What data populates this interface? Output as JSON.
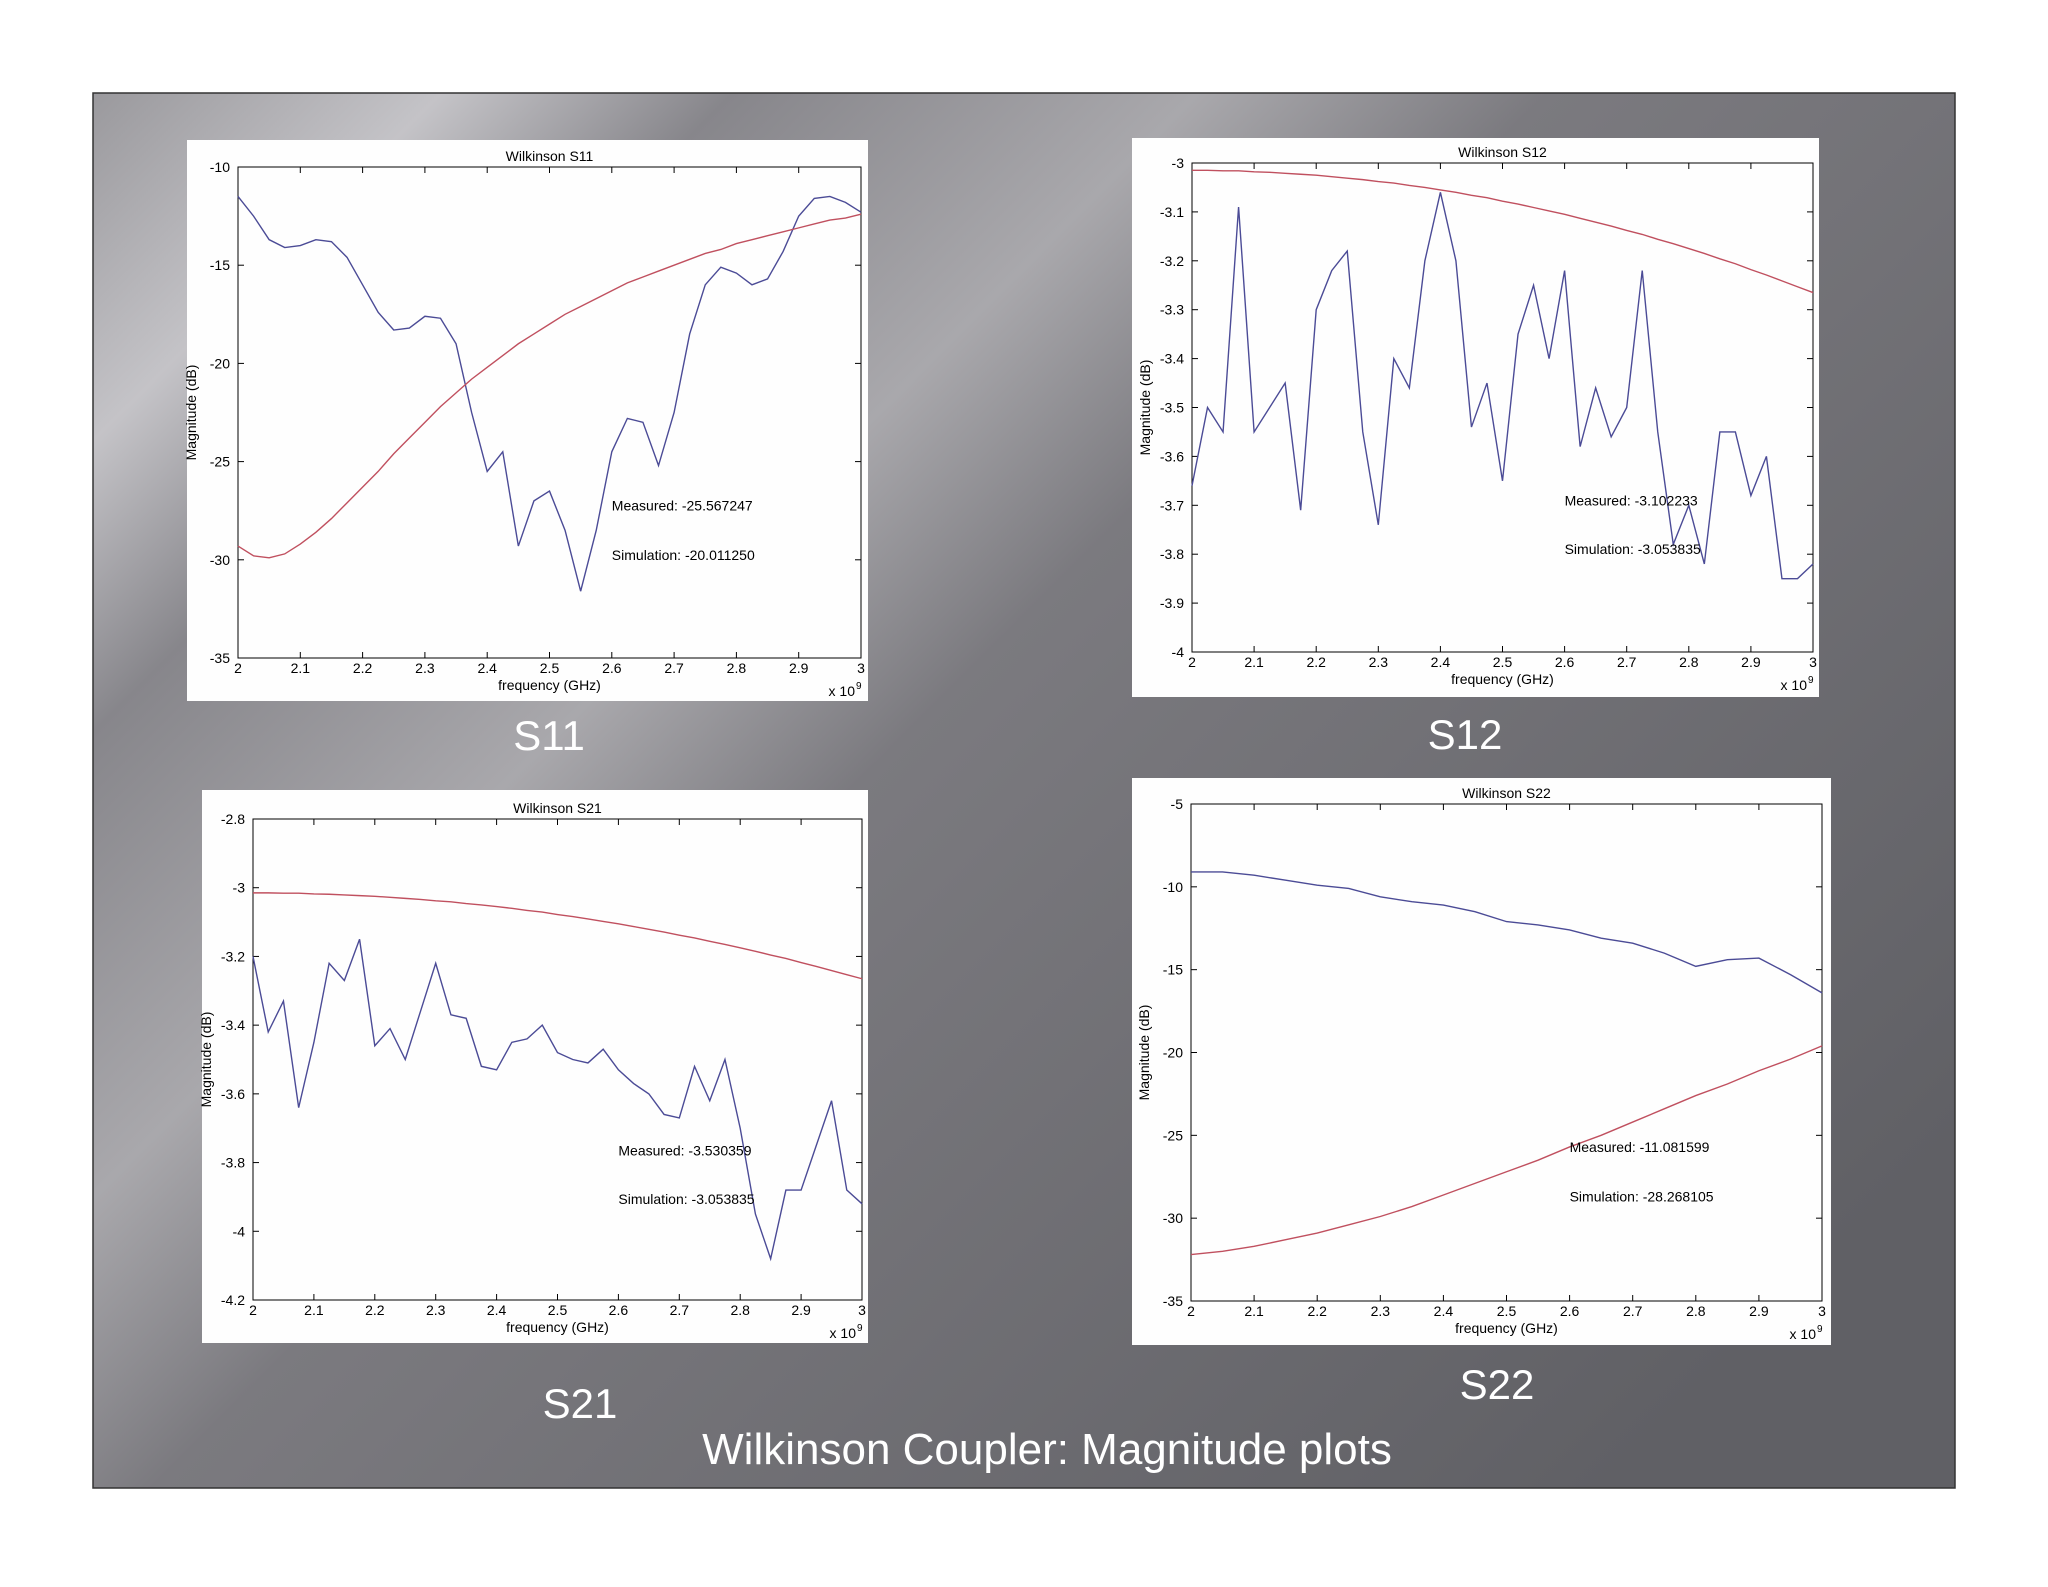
{
  "slide": {
    "title": "Wilkinson Coupler: Magnitude plots"
  },
  "chart_data": [
    {
      "type": "line",
      "title": "Wilkinson S11",
      "caption": "S11",
      "xlabel": "frequency (GHz)",
      "ylabel": "Magnitude (dB)",
      "x_scale_label": "x 10",
      "x_scale_exponent": "9",
      "annotations": [
        "Measured: -25.567247",
        "Simulation: -20.011250"
      ],
      "x": [
        2,
        2.025,
        2.05,
        2.075,
        2.1,
        2.125,
        2.15,
        2.175,
        2.2,
        2.225,
        2.25,
        2.275,
        2.3,
        2.325,
        2.35,
        2.375,
        2.4,
        2.425,
        2.45,
        2.475,
        2.5,
        2.525,
        2.55,
        2.575,
        2.6,
        2.625,
        2.65,
        2.675,
        2.7,
        2.725,
        2.75,
        2.775,
        2.8,
        2.825,
        2.85,
        2.875,
        2.9,
        2.925,
        2.95,
        2.975,
        3
      ],
      "series": [
        {
          "color": "#4b4b96",
          "values": [
            -11.5,
            -12.5,
            -13.7,
            -14.1,
            -14.0,
            -13.7,
            -13.8,
            -14.6,
            -16.0,
            -17.4,
            -18.3,
            -18.2,
            -17.6,
            -17.7,
            -19.0,
            -22.5,
            -25.5,
            -24.5,
            -29.3,
            -27.0,
            -26.5,
            -28.5,
            -31.6,
            -28.5,
            -24.5,
            -22.8,
            -23.0,
            -25.2,
            -22.5,
            -18.5,
            -16.0,
            -15.1,
            -15.4,
            -16.0,
            -15.7,
            -14.3,
            -12.5,
            -11.6,
            -11.5,
            -11.8,
            -12.3
          ]
        },
        {
          "color": "#c0505f",
          "values": [
            -29.3,
            -29.8,
            -29.9,
            -29.7,
            -29.2,
            -28.6,
            -27.9,
            -27.1,
            -26.3,
            -25.5,
            -24.6,
            -23.8,
            -23.0,
            -22.2,
            -21.5,
            -20.8,
            -20.2,
            -19.6,
            -19.0,
            -18.5,
            -18.0,
            -17.5,
            -17.1,
            -16.7,
            -16.3,
            -15.9,
            -15.6,
            -15.3,
            -15.0,
            -14.7,
            -14.4,
            -14.2,
            -13.9,
            -13.7,
            -13.5,
            -13.3,
            -13.1,
            -12.9,
            -12.7,
            -12.6,
            -12.4
          ]
        }
      ],
      "xlim": [
        2,
        3
      ],
      "xticks": [
        2,
        2.1,
        2.2,
        2.3,
        2.4,
        2.5,
        2.6,
        2.7,
        2.8,
        2.9,
        3
      ],
      "ylim": [
        -35,
        -10
      ],
      "yticks": [
        -35,
        -30,
        -25,
        -20,
        -15,
        -10
      ]
    },
    {
      "type": "line",
      "title": "Wilkinson S12",
      "caption": "S12",
      "xlabel": "frequency (GHz)",
      "ylabel": "Magnitude (dB)",
      "x_scale_label": "x 10",
      "x_scale_exponent": "9",
      "annotations": [
        "Measured: -3.102233",
        "Simulation: -3.053835"
      ],
      "x": [
        2,
        2.025,
        2.05,
        2.075,
        2.1,
        2.125,
        2.15,
        2.175,
        2.2,
        2.225,
        2.25,
        2.275,
        2.3,
        2.325,
        2.35,
        2.375,
        2.4,
        2.425,
        2.45,
        2.475,
        2.5,
        2.525,
        2.55,
        2.575,
        2.6,
        2.625,
        2.65,
        2.675,
        2.7,
        2.725,
        2.75,
        2.775,
        2.8,
        2.825,
        2.85,
        2.875,
        2.9,
        2.925,
        2.95,
        2.975,
        3
      ],
      "series": [
        {
          "color": "#4b4b96",
          "values": [
            -3.66,
            -3.5,
            -3.55,
            -3.09,
            -3.55,
            -3.5,
            -3.45,
            -3.71,
            -3.3,
            -3.22,
            -3.18,
            -3.55,
            -3.74,
            -3.4,
            -3.46,
            -3.2,
            -3.06,
            -3.2,
            -3.54,
            -3.45,
            -3.65,
            -3.35,
            -3.25,
            -3.4,
            -3.22,
            -3.58,
            -3.46,
            -3.56,
            -3.5,
            -3.22,
            -3.55,
            -3.78,
            -3.7,
            -3.82,
            -3.55,
            -3.55,
            -3.68,
            -3.6,
            -3.85,
            -3.85,
            -3.82
          ]
        },
        {
          "color": "#c0505f",
          "values": [
            -3.015,
            -3.015,
            -3.016,
            -3.016,
            -3.018,
            -3.019,
            -3.021,
            -3.023,
            -3.025,
            -3.028,
            -3.031,
            -3.034,
            -3.038,
            -3.041,
            -3.046,
            -3.05,
            -3.055,
            -3.06,
            -3.066,
            -3.071,
            -3.078,
            -3.084,
            -3.091,
            -3.098,
            -3.105,
            -3.113,
            -3.121,
            -3.129,
            -3.138,
            -3.146,
            -3.156,
            -3.165,
            -3.175,
            -3.185,
            -3.196,
            -3.206,
            -3.218,
            -3.229,
            -3.241,
            -3.253,
            -3.265
          ]
        }
      ],
      "xlim": [
        2,
        3
      ],
      "xticks": [
        2,
        2.1,
        2.2,
        2.3,
        2.4,
        2.5,
        2.6,
        2.7,
        2.8,
        2.9,
        3
      ],
      "ylim": [
        -4,
        -3
      ],
      "yticks": [
        -4,
        -3.9,
        -3.8,
        -3.7,
        -3.6,
        -3.5,
        -3.4,
        -3.3,
        -3.2,
        -3.1,
        -3
      ]
    },
    {
      "type": "line",
      "title": "Wilkinson S21",
      "caption": "S21",
      "xlabel": "frequency (GHz)",
      "ylabel": "Magnitude (dB)",
      "x_scale_label": "x 10",
      "x_scale_exponent": "9",
      "annotations": [
        "Measured: -3.530359",
        "Simulation: -3.053835"
      ],
      "x": [
        2,
        2.025,
        2.05,
        2.075,
        2.1,
        2.125,
        2.15,
        2.175,
        2.2,
        2.225,
        2.25,
        2.275,
        2.3,
        2.325,
        2.35,
        2.375,
        2.4,
        2.425,
        2.45,
        2.475,
        2.5,
        2.525,
        2.55,
        2.575,
        2.6,
        2.625,
        2.65,
        2.675,
        2.7,
        2.725,
        2.75,
        2.775,
        2.8,
        2.825,
        2.85,
        2.875,
        2.9,
        2.925,
        2.95,
        2.975,
        3
      ],
      "series": [
        {
          "color": "#4b4b96",
          "values": [
            -3.2,
            -3.42,
            -3.33,
            -3.64,
            -3.45,
            -3.22,
            -3.27,
            -3.15,
            -3.46,
            -3.41,
            -3.5,
            -3.36,
            -3.22,
            -3.37,
            -3.38,
            -3.52,
            -3.53,
            -3.45,
            -3.44,
            -3.4,
            -3.48,
            -3.5,
            -3.51,
            -3.47,
            -3.53,
            -3.57,
            -3.6,
            -3.66,
            -3.67,
            -3.52,
            -3.62,
            -3.5,
            -3.7,
            -3.95,
            -4.08,
            -3.88,
            -3.88,
            -3.75,
            -3.62,
            -3.88,
            -3.92
          ]
        },
        {
          "color": "#c0505f",
          "values": [
            -3.015,
            -3.015,
            -3.016,
            -3.016,
            -3.018,
            -3.019,
            -3.021,
            -3.023,
            -3.025,
            -3.028,
            -3.031,
            -3.034,
            -3.038,
            -3.041,
            -3.046,
            -3.05,
            -3.055,
            -3.06,
            -3.066,
            -3.071,
            -3.078,
            -3.084,
            -3.091,
            -3.098,
            -3.105,
            -3.113,
            -3.121,
            -3.129,
            -3.138,
            -3.146,
            -3.156,
            -3.165,
            -3.175,
            -3.185,
            -3.196,
            -3.206,
            -3.218,
            -3.229,
            -3.241,
            -3.253,
            -3.265
          ]
        }
      ],
      "xlim": [
        2,
        3
      ],
      "xticks": [
        2,
        2.1,
        2.2,
        2.3,
        2.4,
        2.5,
        2.6,
        2.7,
        2.8,
        2.9,
        3
      ],
      "ylim": [
        -4.2,
        -2.8
      ],
      "yticks": [
        -4.2,
        -4,
        -3.8,
        -3.6,
        -3.4,
        -3.2,
        -3,
        -2.8
      ]
    },
    {
      "type": "line",
      "title": "Wilkinson S22",
      "caption": "S22",
      "xlabel": "frequency (GHz)",
      "ylabel": "Magnitude (dB)",
      "x_scale_label": "x 10",
      "x_scale_exponent": "9",
      "annotations": [
        "Measured: -11.081599",
        "Simulation: -28.268105"
      ],
      "x": [
        2,
        2.05,
        2.1,
        2.15,
        2.2,
        2.25,
        2.3,
        2.35,
        2.4,
        2.45,
        2.5,
        2.55,
        2.6,
        2.65,
        2.7,
        2.75,
        2.8,
        2.85,
        2.9,
        2.95,
        3
      ],
      "series": [
        {
          "color": "#4b4b96",
          "values": [
            -9.1,
            -9.1,
            -9.3,
            -9.6,
            -9.9,
            -10.1,
            -10.6,
            -10.9,
            -11.1,
            -11.5,
            -12.1,
            -12.3,
            -12.6,
            -13.1,
            -13.4,
            -14.0,
            -14.8,
            -14.4,
            -14.3,
            -15.3,
            -16.4
          ]
        },
        {
          "color": "#c0505f",
          "values": [
            -32.2,
            -32.0,
            -31.7,
            -31.3,
            -30.9,
            -30.4,
            -29.9,
            -29.3,
            -28.6,
            -27.9,
            -27.2,
            -26.5,
            -25.7,
            -25.0,
            -24.2,
            -23.4,
            -22.6,
            -21.9,
            -21.1,
            -20.4,
            -19.6
          ]
        }
      ],
      "xlim": [
        2,
        3
      ],
      "xticks": [
        2,
        2.1,
        2.2,
        2.3,
        2.4,
        2.5,
        2.6,
        2.7,
        2.8,
        2.9,
        3
      ],
      "ylim": [
        -35,
        -5
      ],
      "yticks": [
        -35,
        -30,
        -25,
        -20,
        -15,
        -10,
        -5
      ]
    }
  ]
}
